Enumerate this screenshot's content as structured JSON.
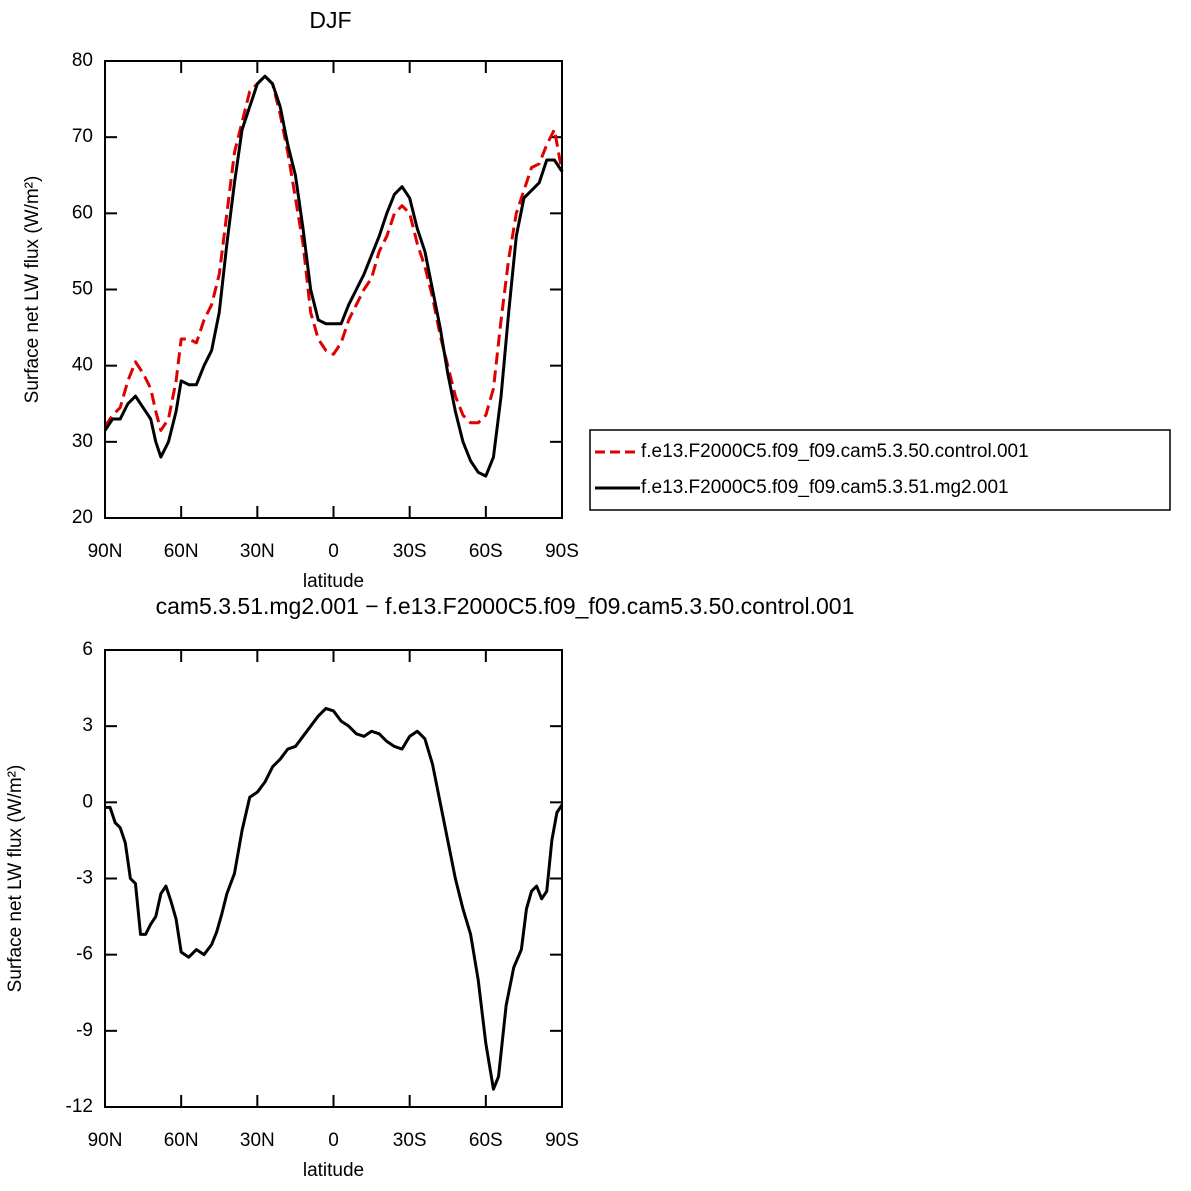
{
  "chart_data": [
    {
      "type": "line",
      "title": "DJF",
      "xlabel": "latitude",
      "ylabel": "Surface net LW flux (W/m²)",
      "x": [
        90,
        87,
        84,
        81,
        78,
        75,
        72,
        70,
        68,
        65,
        62,
        60,
        57,
        54,
        51,
        48,
        45,
        42,
        39,
        36,
        33,
        30,
        27,
        24,
        21,
        18,
        15,
        12,
        9,
        6,
        3,
        0,
        -3,
        -6,
        -9,
        -12,
        -15,
        -18,
        -21,
        -24,
        -27,
        -30,
        -33,
        -36,
        -39,
        -42,
        -45,
        -48,
        -51,
        -54,
        -57,
        -60,
        -63,
        -66,
        -69,
        -72,
        -75,
        -78,
        -81,
        -84,
        -87,
        -90
      ],
      "series": [
        {
          "name": "f.e13.F2000C5.f09_f09.cam5.3.50.control.001",
          "color": "#e00000",
          "dashed": true,
          "values": [
            32,
            33.5,
            34.5,
            38,
            40.5,
            39,
            37,
            34,
            31.5,
            33,
            38,
            43.5,
            43.5,
            43,
            46,
            48,
            52,
            60,
            68,
            72,
            76,
            77,
            78,
            77,
            73,
            68,
            62,
            56,
            47,
            43.5,
            42,
            41.5,
            43,
            46,
            48,
            50,
            51.5,
            55,
            57,
            60,
            61,
            60,
            56,
            53,
            49,
            44,
            40,
            36,
            33.5,
            32.5,
            32.5,
            33.5,
            37,
            46,
            54,
            60,
            63,
            66,
            66.5,
            69,
            71,
            65.5
          ]
        },
        {
          "name": "f.e13.F2000C5.f09_f09.cam5.3.51.mg2.001",
          "color": "#000000",
          "dashed": false,
          "values": [
            31.5,
            33,
            33,
            35,
            36,
            34.5,
            33,
            30,
            28,
            30,
            34,
            38,
            37.5,
            37.5,
            40,
            42,
            47,
            56,
            64,
            71,
            74,
            77,
            78,
            77,
            74,
            69,
            65,
            58,
            50,
            46,
            45.5,
            45.5,
            45.5,
            48,
            50,
            52,
            54.5,
            57,
            60,
            62.5,
            63.5,
            62,
            58,
            55,
            50,
            45,
            39,
            34,
            30,
            27.5,
            26,
            25.5,
            28,
            36,
            47,
            57,
            62,
            63,
            64,
            67,
            67,
            65.5
          ]
        }
      ],
      "xlim": [
        90,
        -90
      ],
      "xticks": [
        {
          "value": 90,
          "label": "90N"
        },
        {
          "value": 60,
          "label": "60N"
        },
        {
          "value": 30,
          "label": "30N"
        },
        0,
        {
          "value": -30,
          "label": "30S"
        },
        {
          "value": -60,
          "label": "60S"
        },
        {
          "value": -90,
          "label": "90S"
        }
      ],
      "ylim": [
        20,
        80
      ],
      "yticks": [
        20,
        30,
        40,
        50,
        60,
        70,
        80
      ],
      "legend": "right"
    },
    {
      "type": "line",
      "title": "cam5.3.51.mg2.001 − f.e13.F2000C5.f09_f09.cam5.3.50.control.001",
      "xlabel": "latitude",
      "ylabel": "Surface net LW flux (W/m²)",
      "x": [
        90,
        88,
        86,
        84,
        82,
        80,
        78,
        76,
        74,
        72,
        70,
        68,
        66,
        64,
        62,
        60,
        57,
        54,
        51,
        48,
        46,
        44,
        42,
        39,
        36,
        33,
        30,
        27,
        24,
        21,
        18,
        15,
        12,
        9,
        6,
        3,
        0,
        -3,
        -6,
        -9,
        -12,
        -15,
        -18,
        -21,
        -24,
        -27,
        -30,
        -33,
        -36,
        -39,
        -42,
        -45,
        -48,
        -51,
        -54,
        -57,
        -60,
        -63,
        -65,
        -68,
        -71,
        -74,
        -76,
        -78,
        -80,
        -82,
        -84,
        -86,
        -88,
        -90
      ],
      "series": [
        {
          "color": "#000000",
          "dashed": false,
          "values": [
            -0.2,
            -0.2,
            -0.8,
            -1,
            -1.6,
            -3,
            -3.2,
            -5.2,
            -5.2,
            -4.8,
            -4.5,
            -3.6,
            -3.3,
            -3.9,
            -4.6,
            -5.9,
            -6.1,
            -5.8,
            -6,
            -5.6,
            -5.1,
            -4.4,
            -3.6,
            -2.8,
            -1.1,
            0.2,
            0.4,
            0.8,
            1.4,
            1.7,
            2.1,
            2.2,
            2.6,
            3,
            3.4,
            3.7,
            3.6,
            3.2,
            3,
            2.7,
            2.6,
            2.8,
            2.7,
            2.4,
            2.2,
            2.1,
            2.6,
            2.8,
            2.5,
            1.5,
            0,
            -1.5,
            -3,
            -4.2,
            -5.2,
            -7,
            -9.5,
            -11.3,
            -10.8,
            -8,
            -6.5,
            -5.8,
            -4.2,
            -3.5,
            -3.3,
            -3.8,
            -3.5,
            -1.5,
            -0.4,
            -0.1
          ]
        }
      ],
      "xlim": [
        90,
        -90
      ],
      "xticks": [
        {
          "value": 90,
          "label": "90N"
        },
        {
          "value": 60,
          "label": "60N"
        },
        {
          "value": 30,
          "label": "30N"
        },
        0,
        {
          "value": -30,
          "label": "30S"
        },
        {
          "value": -60,
          "label": "60S"
        },
        {
          "value": -90,
          "label": "90S"
        }
      ],
      "ylim": [
        -12,
        6
      ],
      "yticks": [
        -12,
        -9,
        -6,
        -3,
        0,
        3,
        6
      ]
    }
  ]
}
